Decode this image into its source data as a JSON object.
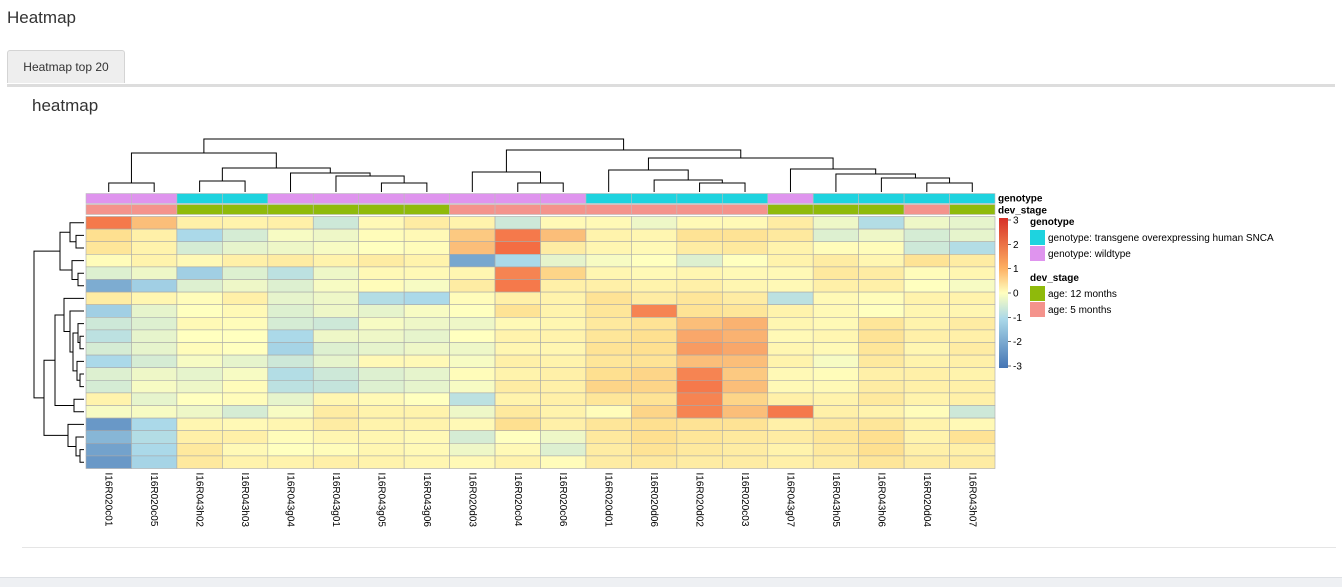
{
  "page": {
    "title": "Heatmap"
  },
  "tabs": [
    {
      "label": "Heatmap top 20",
      "active": true
    }
  ],
  "panel": {
    "title": "heatmap"
  },
  "chart_data": {
    "type": "heatmap",
    "columns": [
      "I16R020c01",
      "I16R020c05",
      "I16R043h02",
      "I16R043h03",
      "I16R043g04",
      "I16R043g01",
      "I16R043g05",
      "I16R043g06",
      "I16R020d03",
      "I16R020c04",
      "I16R020c06",
      "I16R020d01",
      "I16R020d06",
      "I16R020d02",
      "I16R020c03",
      "I16R043g07",
      "I16R043h05",
      "I16R043h06",
      "I16R020d04",
      "I16R043h07"
    ],
    "genotype": [
      "wildtype",
      "wildtype",
      "transgene",
      "transgene",
      "wildtype",
      "wildtype",
      "wildtype",
      "wildtype",
      "wildtype",
      "wildtype",
      "wildtype",
      "transgene",
      "transgene",
      "transgene",
      "transgene",
      "wildtype",
      "transgene",
      "transgene",
      "transgene",
      "transgene"
    ],
    "dev_stage": [
      "5m",
      "5m",
      "12m",
      "12m",
      "12m",
      "12m",
      "12m",
      "12m",
      "5m",
      "5m",
      "5m",
      "5m",
      "5m",
      "5m",
      "5m",
      "12m",
      "12m",
      "12m",
      "5m",
      "12m"
    ],
    "values": [
      [
        1.9,
        1.3,
        0.5,
        0.4,
        0.5,
        -0.6,
        0.2,
        0.6,
        0.4,
        -0.6,
        0.2,
        0.2,
        -0.2,
        0.2,
        0.2,
        0.6,
        -0.2,
        -0.9,
        -0.2,
        -0.3
      ],
      [
        1.0,
        0.5,
        -1.0,
        -0.5,
        -0.1,
        -0.2,
        0.1,
        0.2,
        1.2,
        1.9,
        1.3,
        0.4,
        0.3,
        0.9,
        0.9,
        0.7,
        -0.4,
        -0.2,
        -0.5,
        -0.3
      ],
      [
        0.8,
        0.4,
        -0.5,
        -0.3,
        -0.2,
        -0.1,
        0.0,
        0.1,
        1.3,
        2.0,
        0.6,
        0.3,
        0.2,
        0.6,
        0.7,
        0.4,
        0.1,
        0.1,
        -0.6,
        -0.9
      ],
      [
        0.1,
        0.4,
        0.2,
        0.5,
        0.6,
        0.4,
        0.6,
        0.4,
        -2.0,
        -1.0,
        -0.3,
        -0.1,
        0.0,
        -0.4,
        0.0,
        0.4,
        0.6,
        0.3,
        0.9,
        0.6
      ],
      [
        -0.4,
        -0.2,
        -1.2,
        -0.4,
        -0.8,
        -0.2,
        0.2,
        0.2,
        0.3,
        1.8,
        1.1,
        0.3,
        0.2,
        0.3,
        0.2,
        0.2,
        0.7,
        0.6,
        0.1,
        0.3
      ],
      [
        -1.9,
        -1.2,
        -0.4,
        -0.2,
        -0.4,
        -0.1,
        0.1,
        -0.1,
        0.6,
        1.9,
        0.5,
        0.5,
        0.4,
        0.5,
        0.3,
        0.2,
        0.5,
        0.5,
        0.0,
        -0.1
      ],
      [
        0.6,
        0.3,
        0.1,
        0.5,
        -0.3,
        -0.2,
        -0.9,
        -1.0,
        0.1,
        0.5,
        0.4,
        0.9,
        0.6,
        0.8,
        0.6,
        -0.8,
        0.2,
        0.1,
        0.4,
        0.4
      ],
      [
        -1.2,
        -0.3,
        0.0,
        0.2,
        -0.4,
        -0.2,
        -0.3,
        -0.1,
        0.0,
        0.9,
        0.4,
        0.8,
        1.8,
        0.9,
        0.8,
        0.4,
        0.2,
        0.0,
        0.3,
        0.3
      ],
      [
        -0.6,
        -0.4,
        0.2,
        0.1,
        -0.5,
        -0.6,
        -0.1,
        -0.2,
        -0.2,
        0.2,
        0.3,
        0.7,
        0.9,
        1.3,
        1.4,
        0.3,
        0.2,
        0.8,
        0.4,
        0.6
      ],
      [
        -0.8,
        -0.3,
        0.0,
        0.0,
        -1.0,
        -0.2,
        -0.2,
        -0.3,
        0.0,
        0.4,
        0.4,
        0.8,
        1.0,
        1.5,
        1.4,
        0.2,
        0.3,
        0.9,
        0.5,
        0.5
      ],
      [
        -0.5,
        -0.3,
        0.1,
        0.0,
        -1.1,
        -0.4,
        -0.3,
        -0.2,
        -0.2,
        0.3,
        0.3,
        0.9,
        1.0,
        1.6,
        1.5,
        0.3,
        0.2,
        0.8,
        0.3,
        0.6
      ],
      [
        -1.0,
        -0.5,
        -0.1,
        -0.3,
        -0.6,
        -0.3,
        0.2,
        0.2,
        -0.1,
        0.5,
        0.4,
        0.8,
        0.9,
        1.3,
        1.3,
        0.4,
        -0.1,
        0.7,
        0.4,
        0.5
      ],
      [
        -0.4,
        -0.2,
        -0.3,
        -0.1,
        -0.9,
        -0.6,
        -0.4,
        -0.3,
        0.1,
        0.4,
        0.5,
        1.0,
        1.1,
        1.8,
        1.2,
        0.2,
        0.1,
        0.5,
        0.5,
        0.4
      ],
      [
        -0.5,
        -0.1,
        -0.2,
        0.1,
        -0.8,
        -0.7,
        -0.4,
        -0.3,
        -0.1,
        0.6,
        0.5,
        1.1,
        1.1,
        1.9,
        1.3,
        0.2,
        0.2,
        0.6,
        0.5,
        0.5
      ],
      [
        0.4,
        -0.3,
        0.0,
        0.1,
        -0.3,
        0.3,
        0.2,
        0.0,
        -0.8,
        0.4,
        0.5,
        0.8,
        0.9,
        1.8,
        1.1,
        0.5,
        0.4,
        0.7,
        0.4,
        0.5
      ],
      [
        -0.1,
        -0.1,
        -0.2,
        -0.5,
        -0.1,
        0.6,
        0.4,
        0.4,
        -0.2,
        0.7,
        0.4,
        0.1,
        1.1,
        1.8,
        1.3,
        1.9,
        0.5,
        0.4,
        0.1,
        -0.6
      ],
      [
        -2.3,
        -1.0,
        0.3,
        0.2,
        0.3,
        0.6,
        0.4,
        0.4,
        0.2,
        1.0,
        0.5,
        0.8,
        1.0,
        0.9,
        0.9,
        0.5,
        0.7,
        0.8,
        0.4,
        0.2
      ],
      [
        -1.7,
        -0.9,
        0.5,
        0.5,
        0.1,
        0.3,
        0.3,
        0.2,
        -0.5,
        0.0,
        -0.2,
        0.7,
        1.0,
        0.8,
        0.7,
        0.6,
        0.8,
        1.0,
        0.4,
        0.9
      ],
      [
        -2.1,
        -1.0,
        0.7,
        0.2,
        0.0,
        0.1,
        0.3,
        0.2,
        -0.2,
        0.2,
        -0.4,
        0.6,
        0.9,
        0.7,
        0.6,
        0.4,
        0.7,
        1.0,
        0.5,
        0.5
      ],
      [
        -2.3,
        -1.1,
        0.7,
        0.4,
        0.4,
        0.5,
        0.4,
        0.3,
        0.2,
        0.4,
        0.1,
        0.6,
        0.7,
        0.6,
        0.6,
        0.5,
        0.6,
        0.8,
        0.6,
        0.6
      ]
    ],
    "color_scale": {
      "min": -3,
      "max": 3,
      "low": "#4575b4",
      "mid": "#ffffbf",
      "high": "#d73027"
    },
    "color_ticks": [
      "3",
      "2",
      "1",
      "0",
      "-1",
      "-2",
      "-3"
    ],
    "annotation_rows": [
      "genotype",
      "dev_stage"
    ],
    "legend": {
      "genotype_title": "genotype",
      "genotype_items": [
        {
          "label": "genotype: transgene overexpressing human SNCA",
          "key": "transgene",
          "color": "#1ed3df"
        },
        {
          "label": "genotype: wildtype",
          "key": "wildtype",
          "color": "#df94ee"
        }
      ],
      "dev_stage_title": "dev_stage",
      "dev_stage_items": [
        {
          "label": "age: 12 months",
          "key": "12m",
          "color": "#8fba0b"
        },
        {
          "label": "age: 5 months",
          "key": "5m",
          "color": "#f4938c"
        }
      ]
    },
    "grid": true
  }
}
